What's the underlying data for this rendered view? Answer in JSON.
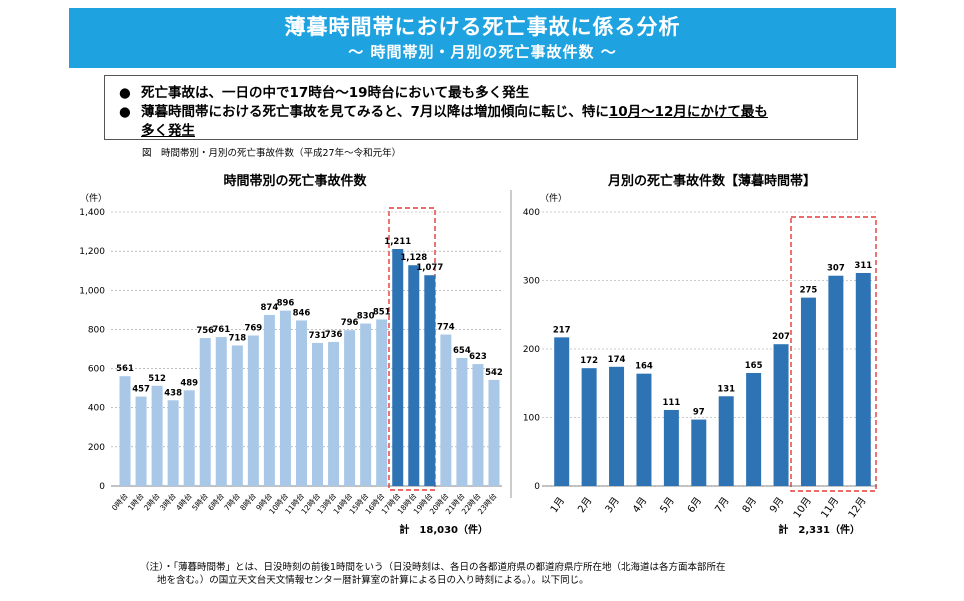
{
  "header": {
    "title": "薄暮時間帯における死亡事故に係る分析",
    "subtitle": "～ 時間帯別・月別の死亡事故件数 ～"
  },
  "bullets": {
    "b1_pre": "死亡事故は、一日の中で",
    "b1_bold": "17時台～19時台",
    "b1_post": "において最も多く発生",
    "b2_pre": "薄暮時間帯における死亡事故を見てみると、7月以降は増加傾向に転じ、特に",
    "b2_underline": "10月～12月にかけて最も",
    "b2_line2": "多く発生"
  },
  "figure_caption": "図　時間帯別・月別の死亡事故件数（平成27年～令和元年）",
  "footnote": {
    "line1": "（注）・「薄暮時間帯」とは、日没時刻の前後1時間をいう（日没時刻は、各日の各都道府県の都道府県庁所在地（北海道は各方面本部所在",
    "line2": "地を含む。）の国立天文台天文情報センター暦計算室の計算による日の入り時刻による。）。以下同じ。"
  },
  "colors": {
    "banner": "#1fa2e0",
    "light_bar": "#a9c8e7",
    "dark_bar": "#2e74b5",
    "highlight_box": "#e53935"
  },
  "chart_data": [
    {
      "type": "bar",
      "title": "時間帯別の死亡事故件数",
      "ylabel": "（件）",
      "ylim": [
        0,
        1400
      ],
      "yticks": [
        "0",
        "200",
        "400",
        "600",
        "800",
        "1,000",
        "1,200",
        "1,400"
      ],
      "categories": [
        "0時台",
        "1時台",
        "2時台",
        "3時台",
        "4時台",
        "5時台",
        "6時台",
        "7時台",
        "8時台",
        "9時台",
        "10時台",
        "11時台",
        "12時台",
        "13時台",
        "14時台",
        "15時台",
        "16時台",
        "17時台",
        "18時台",
        "19時台",
        "20時台",
        "21時台",
        "22時台",
        "23時台"
      ],
      "values": [
        561,
        457,
        512,
        438,
        489,
        756,
        761,
        718,
        769,
        874,
        896,
        846,
        731,
        736,
        796,
        830,
        851,
        1211,
        1128,
        1077,
        774,
        654,
        623,
        542
      ],
      "value_labels": [
        "561",
        "457",
        "512",
        "438",
        "489",
        "756",
        "761",
        "718",
        "769",
        "874",
        "896",
        "846",
        "731",
        "736",
        "796",
        "830",
        "851",
        "1,211",
        "1,128",
        "1,077",
        "774",
        "654",
        "623",
        "542"
      ],
      "highlight": [
        17,
        19
      ],
      "total_label": "計　18,030（件）",
      "grid": true
    },
    {
      "type": "bar",
      "title": "月別の死亡事故件数【薄暮時間帯】",
      "ylabel": "（件）",
      "ylim": [
        0,
        400
      ],
      "yticks": [
        "0",
        "100",
        "200",
        "300",
        "400"
      ],
      "categories": [
        "1月",
        "2月",
        "3月",
        "4月",
        "5月",
        "6月",
        "7月",
        "8月",
        "9月",
        "10月",
        "11月",
        "12月"
      ],
      "values": [
        217,
        172,
        174,
        164,
        111,
        97,
        131,
        165,
        207,
        275,
        307,
        311
      ],
      "value_labels": [
        "217",
        "172",
        "174",
        "164",
        "111",
        "97",
        "131",
        "165",
        "207",
        "275",
        "307",
        "311"
      ],
      "highlight": [
        9,
        11
      ],
      "total_label": "計　2,331（件）",
      "grid": true
    }
  ]
}
